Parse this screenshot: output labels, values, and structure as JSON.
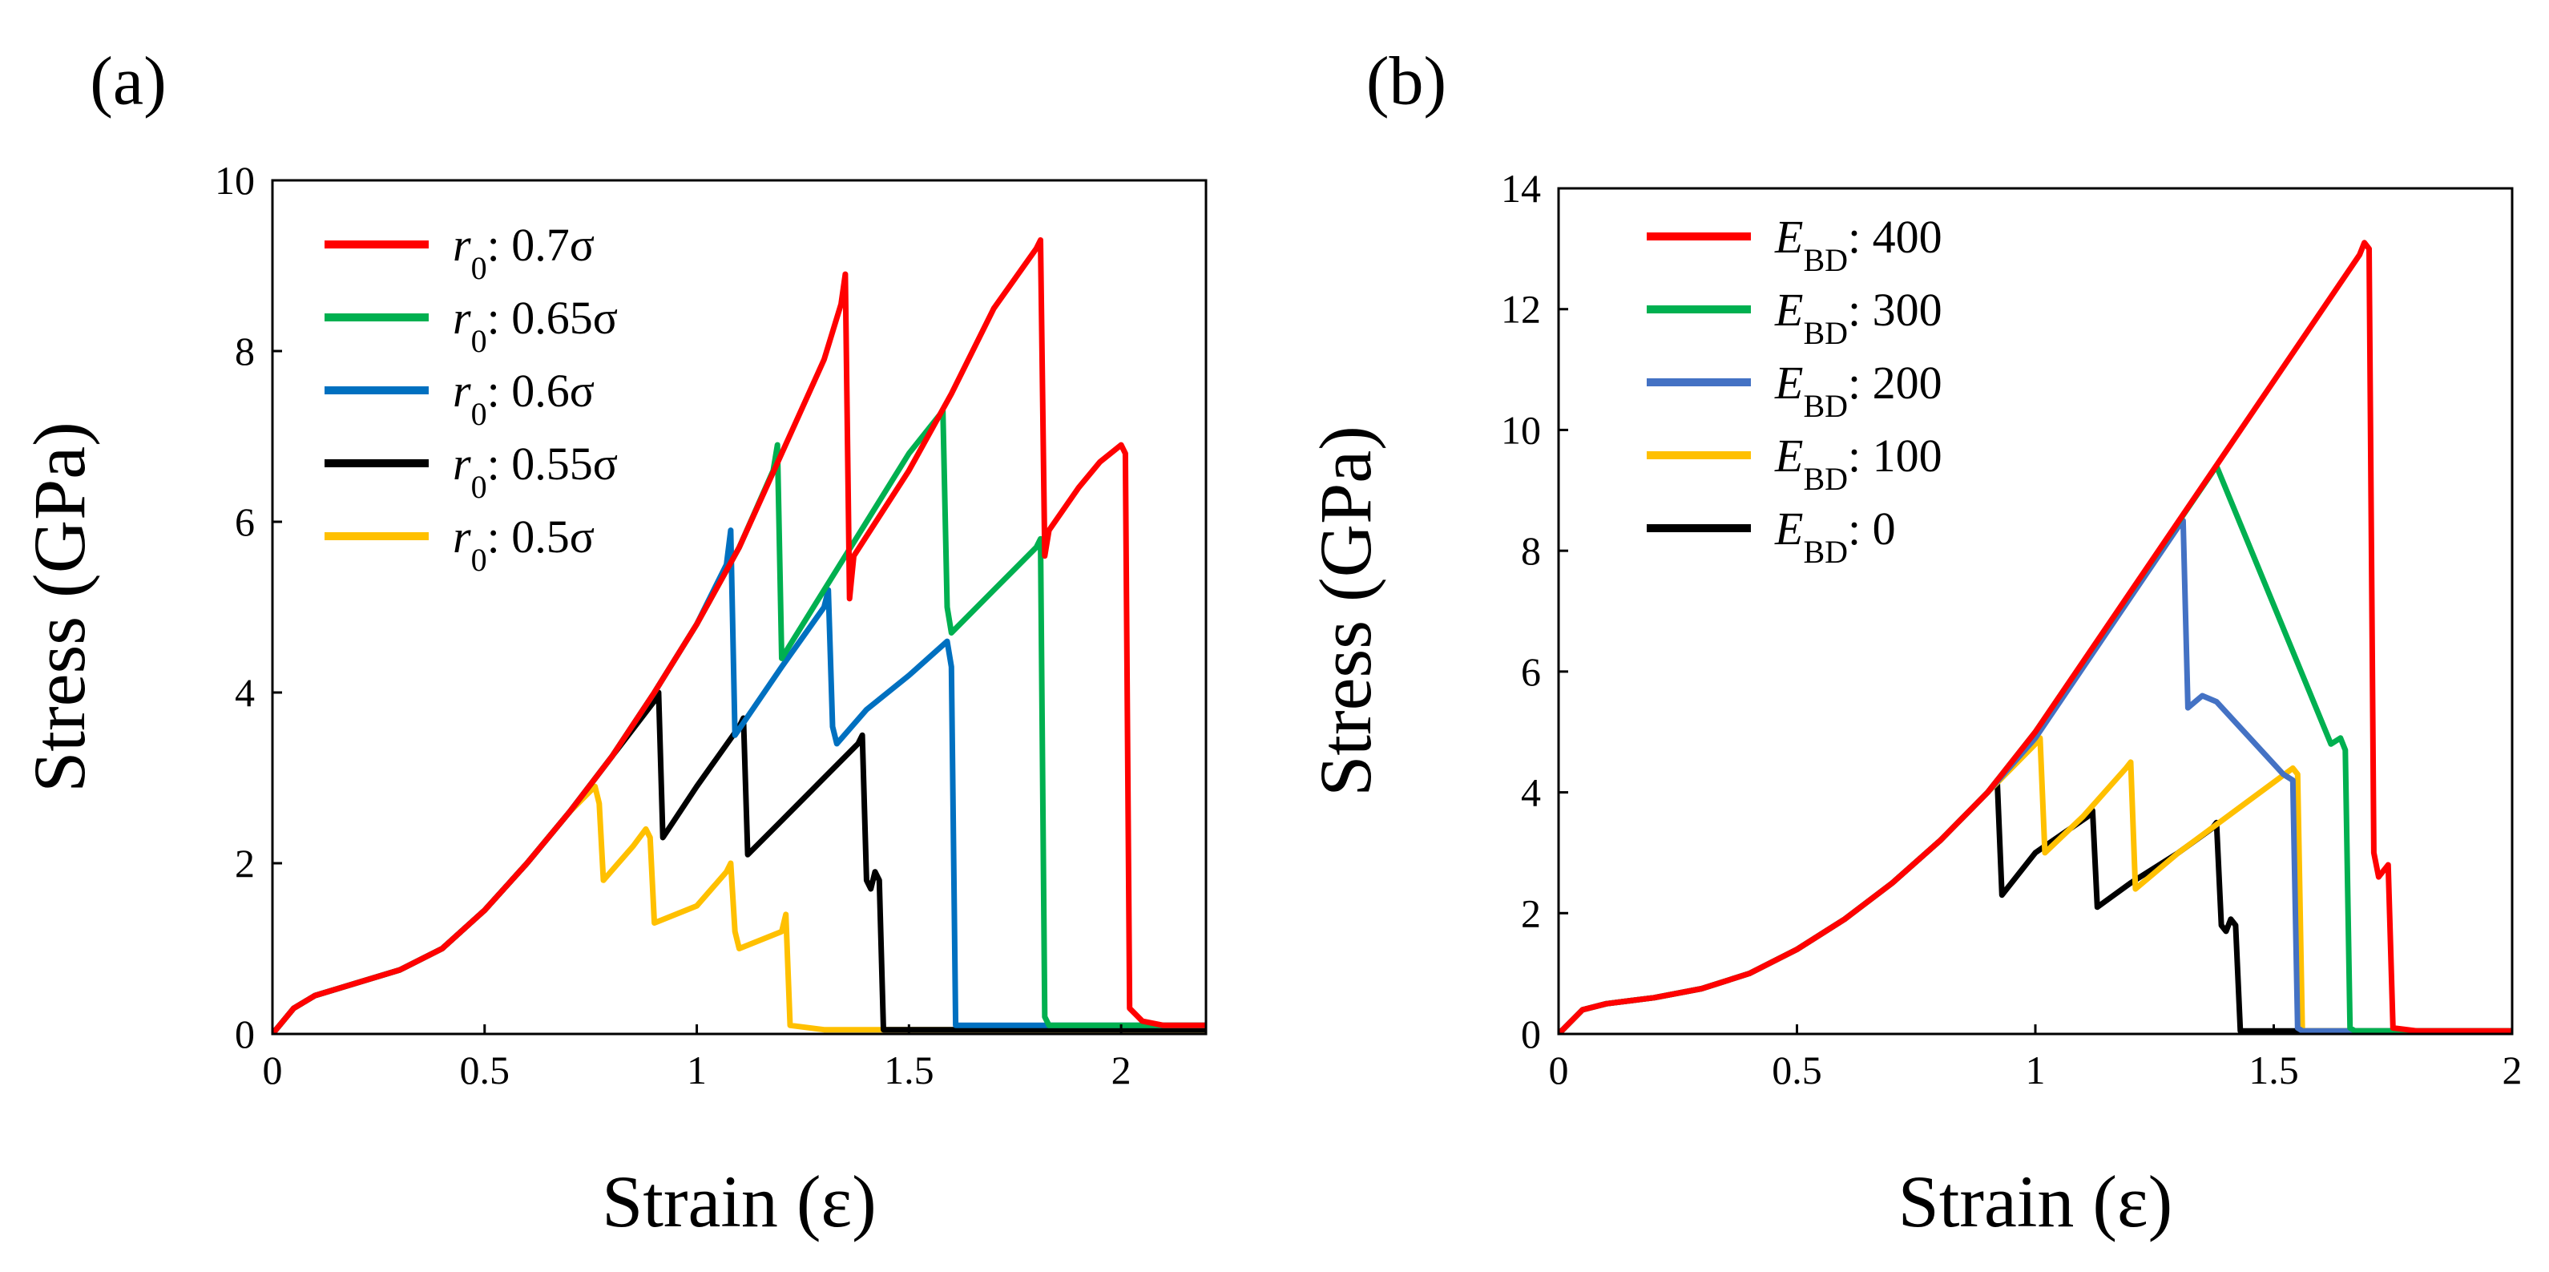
{
  "chart_data": [
    {
      "type": "line",
      "panel_label": "(a)",
      "xlabel": "Strain (ε)",
      "ylabel": "Stress (GPa)",
      "xlim": [
        0,
        2.2
      ],
      "ylim": [
        0,
        10
      ],
      "xticks": [
        0,
        0.5,
        1,
        1.5,
        2
      ],
      "xtick_labels": [
        "0",
        "0.5",
        "1",
        "1.5",
        "2"
      ],
      "yticks": [
        0,
        2,
        4,
        6,
        8,
        10
      ],
      "ytick_labels": [
        "0",
        "2",
        "4",
        "6",
        "8",
        "10"
      ],
      "legend_position": "top-left",
      "series": [
        {
          "name": "r0: 0.7σ",
          "legend": {
            "sym": "r",
            "sub": "0",
            "rest": ": 0.7σ"
          },
          "color": "#ff0000",
          "x": [
            0,
            0.05,
            0.1,
            0.2,
            0.3,
            0.4,
            0.5,
            0.6,
            0.7,
            0.8,
            0.9,
            1.0,
            1.1,
            1.2,
            1.3,
            1.34,
            1.35,
            1.36,
            1.37,
            1.5,
            1.6,
            1.7,
            1.8,
            1.81,
            1.82,
            1.83,
            1.9,
            1.95,
            2.0,
            2.01,
            2.02,
            2.05,
            2.1,
            2.2
          ],
          "y": [
            0,
            0.3,
            0.45,
            0.6,
            0.75,
            1.0,
            1.45,
            2.0,
            2.6,
            3.25,
            4.0,
            4.8,
            5.7,
            6.8,
            7.9,
            8.55,
            8.9,
            5.1,
            5.6,
            6.6,
            7.5,
            8.5,
            9.2,
            9.3,
            5.6,
            5.9,
            6.4,
            6.7,
            6.9,
            6.8,
            0.3,
            0.15,
            0.1,
            0.1
          ]
        },
        {
          "name": "r0: 0.65σ",
          "legend": {
            "sym": "r",
            "sub": "0",
            "rest": ": 0.65σ"
          },
          "color": "#00b050",
          "x": [
            0,
            0.05,
            0.1,
            0.2,
            0.3,
            0.4,
            0.5,
            0.6,
            0.7,
            0.8,
            0.9,
            1.0,
            1.1,
            1.18,
            1.19,
            1.2,
            1.3,
            1.4,
            1.5,
            1.58,
            1.59,
            1.6,
            1.7,
            1.8,
            1.81,
            1.82,
            1.83,
            1.9,
            2.0,
            2.2
          ],
          "y": [
            0,
            0.3,
            0.45,
            0.6,
            0.75,
            1.0,
            1.45,
            2.0,
            2.6,
            3.25,
            4.0,
            4.8,
            5.7,
            6.6,
            6.9,
            4.4,
            5.2,
            6.0,
            6.8,
            7.3,
            5.0,
            4.7,
            5.2,
            5.7,
            5.8,
            0.2,
            0.1,
            0.1,
            0.1,
            0.1
          ]
        },
        {
          "name": "r0: 0.6σ",
          "legend": {
            "sym": "r",
            "sub": "0",
            "rest": ": 0.6σ"
          },
          "color": "#0070c0",
          "x": [
            0,
            0.05,
            0.1,
            0.2,
            0.3,
            0.4,
            0.5,
            0.6,
            0.7,
            0.8,
            0.9,
            1.0,
            1.07,
            1.08,
            1.09,
            1.2,
            1.3,
            1.31,
            1.32,
            1.33,
            1.4,
            1.5,
            1.59,
            1.6,
            1.61,
            1.8,
            2.0,
            2.2
          ],
          "y": [
            0,
            0.3,
            0.45,
            0.6,
            0.75,
            1.0,
            1.45,
            2.0,
            2.6,
            3.25,
            4.0,
            4.8,
            5.5,
            5.9,
            3.5,
            4.3,
            5.0,
            5.2,
            3.6,
            3.4,
            3.8,
            4.2,
            4.6,
            4.3,
            0.1,
            0.1,
            0.1,
            0.1
          ]
        },
        {
          "name": "r0: 0.55σ",
          "legend": {
            "sym": "r",
            "sub": "0",
            "rest": ": 0.55σ"
          },
          "color": "#000000",
          "x": [
            0,
            0.05,
            0.1,
            0.2,
            0.3,
            0.4,
            0.5,
            0.6,
            0.7,
            0.8,
            0.9,
            0.91,
            0.92,
            1.0,
            1.1,
            1.11,
            1.12,
            1.2,
            1.3,
            1.38,
            1.39,
            1.4,
            1.41,
            1.42,
            1.43,
            1.44,
            1.45,
            1.6,
            2.2
          ],
          "y": [
            0,
            0.3,
            0.45,
            0.6,
            0.75,
            1.0,
            1.45,
            2.0,
            2.6,
            3.25,
            3.9,
            4.0,
            2.3,
            2.9,
            3.6,
            3.7,
            2.1,
            2.5,
            3.0,
            3.4,
            3.5,
            1.8,
            1.7,
            1.9,
            1.8,
            0.05,
            0.05,
            0.05,
            0.05
          ]
        },
        {
          "name": "r0: 0.5σ",
          "legend": {
            "sym": "r",
            "sub": "0",
            "rest": ": 0.5σ"
          },
          "color": "#ffc000",
          "x": [
            0,
            0.05,
            0.1,
            0.2,
            0.3,
            0.4,
            0.5,
            0.6,
            0.7,
            0.76,
            0.77,
            0.78,
            0.85,
            0.88,
            0.89,
            0.9,
            1.0,
            1.07,
            1.08,
            1.09,
            1.1,
            1.2,
            1.21,
            1.22,
            1.3,
            1.5,
            2.2
          ],
          "y": [
            0,
            0.3,
            0.45,
            0.6,
            0.75,
            1.0,
            1.45,
            2.0,
            2.6,
            2.9,
            2.7,
            1.8,
            2.2,
            2.4,
            2.3,
            1.3,
            1.5,
            1.9,
            2.0,
            1.2,
            1.0,
            1.2,
            1.4,
            0.1,
            0.05,
            0.05,
            0.05
          ]
        }
      ]
    },
    {
      "type": "line",
      "panel_label": "(b)",
      "xlabel": "Strain (ε)",
      "ylabel": "Stress (GPa)",
      "xlim": [
        0,
        2
      ],
      "ylim": [
        0,
        14
      ],
      "xticks": [
        0,
        0.5,
        1,
        1.5,
        2
      ],
      "xtick_labels": [
        "0",
        "0.5",
        "1",
        "1.5",
        "2"
      ],
      "yticks": [
        0,
        2,
        4,
        6,
        8,
        10,
        12,
        14
      ],
      "ytick_labels": [
        "0",
        "2",
        "4",
        "6",
        "8",
        "10",
        "12",
        "14"
      ],
      "legend_position": "top-left",
      "series": [
        {
          "name": "EBD: 400",
          "legend": {
            "sym": "E",
            "sub": "BD",
            "rest": ": 400"
          },
          "color": "#ff0000",
          "x": [
            0,
            0.05,
            0.1,
            0.2,
            0.3,
            0.4,
            0.5,
            0.6,
            0.7,
            0.8,
            0.9,
            1.0,
            1.68,
            1.69,
            1.7,
            1.71,
            1.72,
            1.74,
            1.75,
            1.8,
            2.0
          ],
          "y": [
            0,
            0.4,
            0.5,
            0.6,
            0.75,
            1.0,
            1.4,
            1.9,
            2.5,
            3.2,
            4.0,
            5.0,
            12.9,
            13.1,
            13.0,
            3.0,
            2.6,
            2.8,
            0.1,
            0.05,
            0.05
          ]
        },
        {
          "name": "EBD: 300",
          "legend": {
            "sym": "E",
            "sub": "BD",
            "rest": ": 300"
          },
          "color": "#00b050",
          "x": [
            0,
            0.05,
            0.1,
            0.2,
            0.3,
            0.4,
            0.5,
            0.6,
            0.7,
            0.8,
            0.9,
            1.0,
            1.38,
            1.62,
            1.64,
            1.65,
            1.66,
            1.67,
            2.0
          ],
          "y": [
            0,
            0.4,
            0.5,
            0.6,
            0.75,
            1.0,
            1.4,
            1.9,
            2.5,
            3.2,
            4.0,
            5.0,
            9.4,
            4.8,
            4.9,
            4.7,
            0.1,
            0.05,
            0.05
          ]
        },
        {
          "name": "EBD: 200",
          "legend": {
            "sym": "E",
            "sub": "BD",
            "rest": ": 200"
          },
          "color": "#4472c4",
          "x": [
            0,
            0.05,
            0.1,
            0.2,
            0.3,
            0.4,
            0.5,
            0.6,
            0.7,
            0.8,
            0.9,
            1.0,
            1.3,
            1.31,
            1.32,
            1.35,
            1.38,
            1.52,
            1.54,
            1.55,
            1.56,
            2.0
          ],
          "y": [
            0,
            0.4,
            0.5,
            0.6,
            0.75,
            1.0,
            1.4,
            1.9,
            2.5,
            3.2,
            4.0,
            4.9,
            8.4,
            8.5,
            5.4,
            5.6,
            5.5,
            4.3,
            4.2,
            0.1,
            0.05,
            0.05
          ]
        },
        {
          "name": "EBD: 100",
          "legend": {
            "sym": "E",
            "sub": "BD",
            "rest": ": 100"
          },
          "color": "#ffc000",
          "x": [
            0,
            0.05,
            0.1,
            0.2,
            0.3,
            0.4,
            0.5,
            0.6,
            0.7,
            0.8,
            0.9,
            1.0,
            1.01,
            1.02,
            1.1,
            1.19,
            1.2,
            1.21,
            1.3,
            1.54,
            1.55,
            1.56,
            2.0
          ],
          "y": [
            0,
            0.4,
            0.5,
            0.6,
            0.75,
            1.0,
            1.4,
            1.9,
            2.5,
            3.2,
            4.0,
            4.8,
            4.9,
            3.0,
            3.6,
            4.4,
            4.5,
            2.4,
            3.0,
            4.4,
            4.3,
            0.05,
            0.05
          ]
        },
        {
          "name": "EBD: 0",
          "legend": {
            "sym": "E",
            "sub": "BD",
            "rest": ": 0"
          },
          "color": "#000000",
          "x": [
            0,
            0.05,
            0.1,
            0.2,
            0.3,
            0.4,
            0.5,
            0.6,
            0.7,
            0.8,
            0.9,
            0.92,
            0.93,
            1.0,
            1.11,
            1.12,
            1.13,
            1.2,
            1.3,
            1.37,
            1.38,
            1.39,
            1.4,
            1.41,
            1.42,
            1.43,
            1.6,
            2.0
          ],
          "y": [
            0,
            0.4,
            0.5,
            0.6,
            0.75,
            1.0,
            1.4,
            1.9,
            2.5,
            3.2,
            4.0,
            4.2,
            2.3,
            3.0,
            3.6,
            3.7,
            2.1,
            2.5,
            3.0,
            3.4,
            3.5,
            1.8,
            1.7,
            1.9,
            1.8,
            0.05,
            0.05,
            0.05
          ]
        }
      ]
    }
  ]
}
